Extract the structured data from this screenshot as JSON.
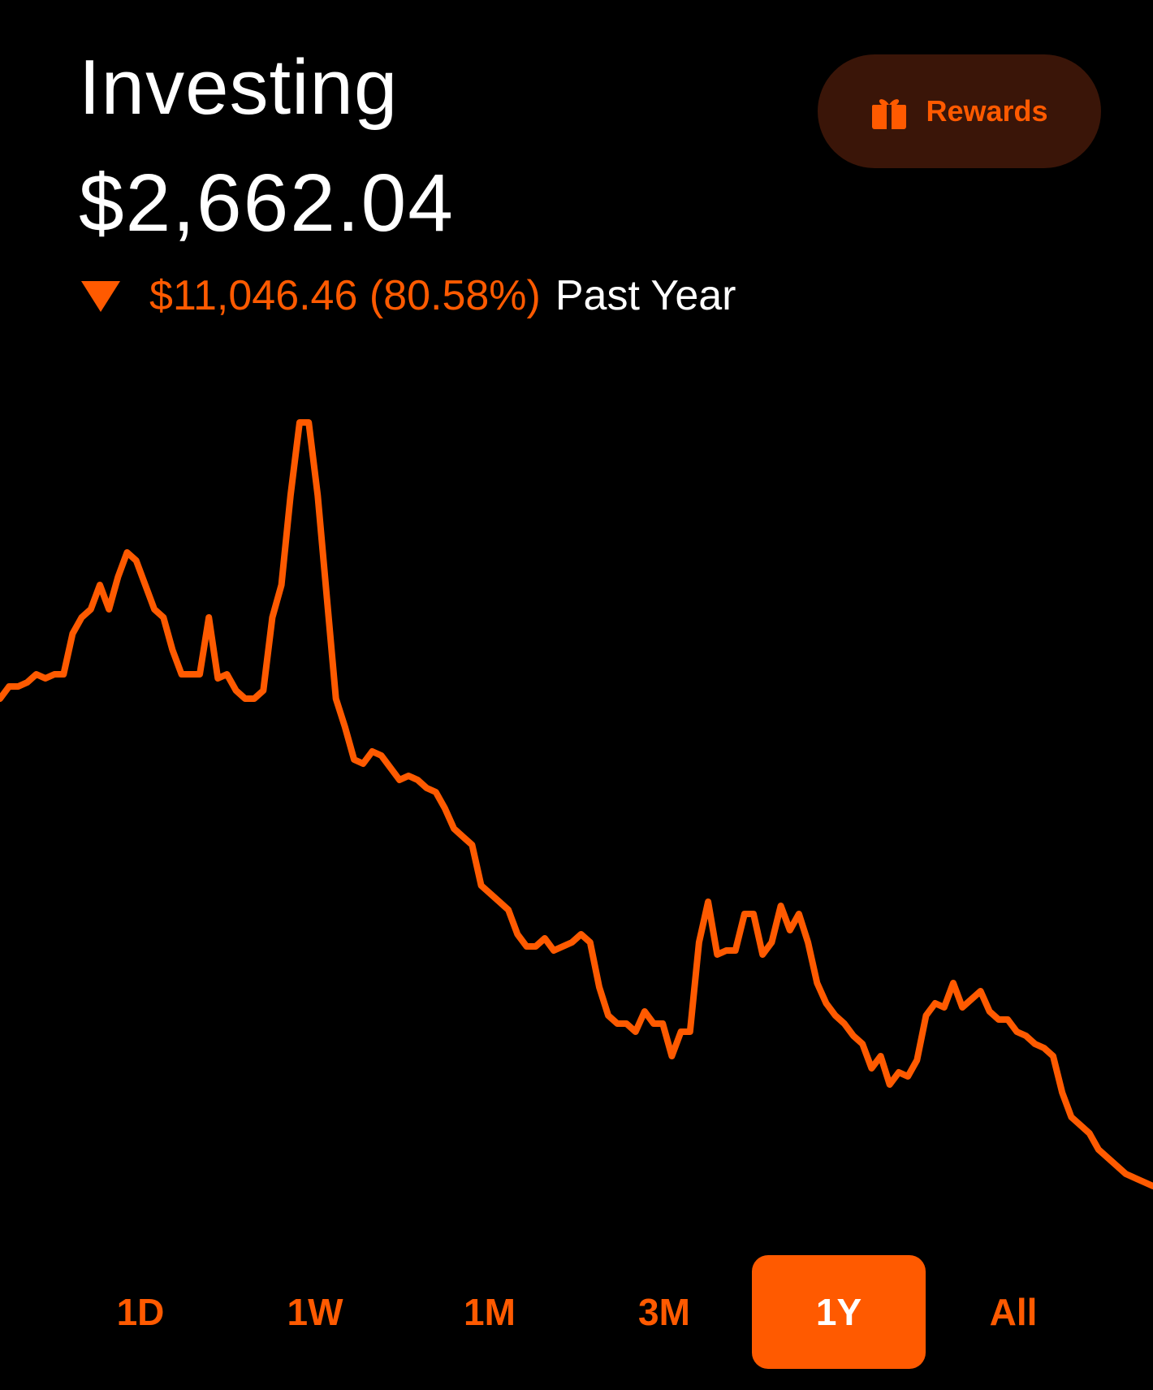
{
  "header": {
    "title": "Investing",
    "balance": "$2,662.04",
    "change_amount": "$11,046.46 (80.58%)",
    "change_period": "Past Year",
    "change_direction_icon": "triangle-down-icon"
  },
  "rewards": {
    "label": "Rewards",
    "icon": "gift-icon"
  },
  "range_tabs": [
    {
      "label": "1D",
      "active": false
    },
    {
      "label": "1W",
      "active": false
    },
    {
      "label": "1M",
      "active": false
    },
    {
      "label": "3M",
      "active": false
    },
    {
      "label": "1Y",
      "active": true
    },
    {
      "label": "All",
      "active": false
    }
  ],
  "colors": {
    "background": "#000000",
    "accent": "#ff5a00",
    "rewards_bg": "#3a1508",
    "text": "#ffffff"
  },
  "chart_data": {
    "type": "line",
    "y": [
      0.2,
      0.23,
      0.23,
      0.24,
      0.26,
      0.25,
      0.26,
      0.26,
      0.36,
      0.4,
      0.42,
      0.48,
      0.42,
      0.5,
      0.56,
      0.54,
      0.48,
      0.42,
      0.4,
      0.32,
      0.26,
      0.26,
      0.26,
      0.4,
      0.25,
      0.26,
      0.22,
      0.2,
      0.2,
      0.22,
      0.4,
      0.48,
      0.7,
      0.88,
      0.88,
      0.7,
      0.45,
      0.2,
      0.13,
      0.05,
      0.04,
      0.07,
      0.06,
      0.03,
      0.0,
      0.01,
      0.0,
      -0.02,
      -0.03,
      -0.07,
      -0.12,
      -0.14,
      -0.16,
      -0.26,
      -0.28,
      -0.3,
      -0.32,
      -0.38,
      -0.41,
      -0.41,
      -0.39,
      -0.42,
      -0.41,
      -0.4,
      -0.38,
      -0.4,
      -0.51,
      -0.58,
      -0.6,
      -0.6,
      -0.62,
      -0.57,
      -0.6,
      -0.6,
      -0.68,
      -0.62,
      -0.62,
      -0.4,
      -0.3,
      -0.43,
      -0.42,
      -0.42,
      -0.33,
      -0.33,
      -0.43,
      -0.4,
      -0.31,
      -0.37,
      -0.33,
      -0.4,
      -0.5,
      -0.55,
      -0.58,
      -0.6,
      -0.63,
      -0.65,
      -0.71,
      -0.68,
      -0.75,
      -0.72,
      -0.73,
      -0.69,
      -0.58,
      -0.55,
      -0.56,
      -0.5,
      -0.56,
      -0.54,
      -0.52,
      -0.57,
      -0.59,
      -0.59,
      -0.62,
      -0.63,
      -0.65,
      -0.66,
      -0.68,
      -0.77,
      -0.83,
      -0.85,
      -0.87,
      -0.91,
      -0.93,
      -0.95,
      -0.97,
      -0.98,
      -0.99,
      -1.0
    ]
  }
}
